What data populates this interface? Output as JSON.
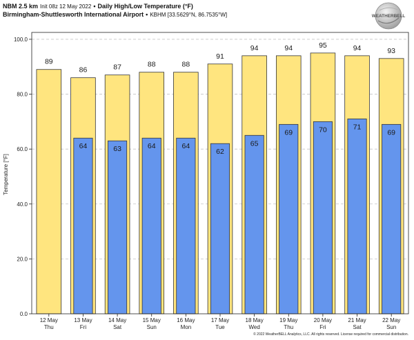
{
  "header": {
    "model": "NBM 2.5 km",
    "init": "Init 08z 12 May 2022",
    "separator": "•",
    "product": "Daily High/Low Temperature (°F)",
    "station": "Birmingham-Shuttlesworth International Airport",
    "station_meta": "KBHM [33.5629°N, 86.7535°W]"
  },
  "logo": {
    "text": "WEATHERBELL"
  },
  "footer": {
    "copyright": "© 2022 WeatherBELL Analytics, LLC. All rights reserved. License required for commercial distribution."
  },
  "chart_data": {
    "type": "bar",
    "categories": [
      "12 May",
      "13 May",
      "14 May",
      "15 May",
      "16 May",
      "17 May",
      "18 May",
      "19 May",
      "20 May",
      "21 May",
      "22 May"
    ],
    "category_days": [
      "Thu",
      "Fri",
      "Sat",
      "Sun",
      "Mon",
      "Tue",
      "Wed",
      "Thu",
      "Fri",
      "Sat",
      "Sun"
    ],
    "series": [
      {
        "values": [
          89,
          86,
          87,
          88,
          88,
          91,
          94,
          94,
          95,
          94,
          93
        ],
        "color": "#ffe57f"
      },
      {
        "values": [
          null,
          64,
          63,
          64,
          64,
          62,
          65,
          69,
          70,
          71,
          69
        ],
        "color": "#6495ed"
      }
    ],
    "ylabel": "Temperature [°F]",
    "ylim": [
      0,
      102.5
    ],
    "yticks": [
      "0.0",
      "20.0",
      "40.0",
      "60.0",
      "80.0",
      "100.0"
    ],
    "grid": true
  }
}
